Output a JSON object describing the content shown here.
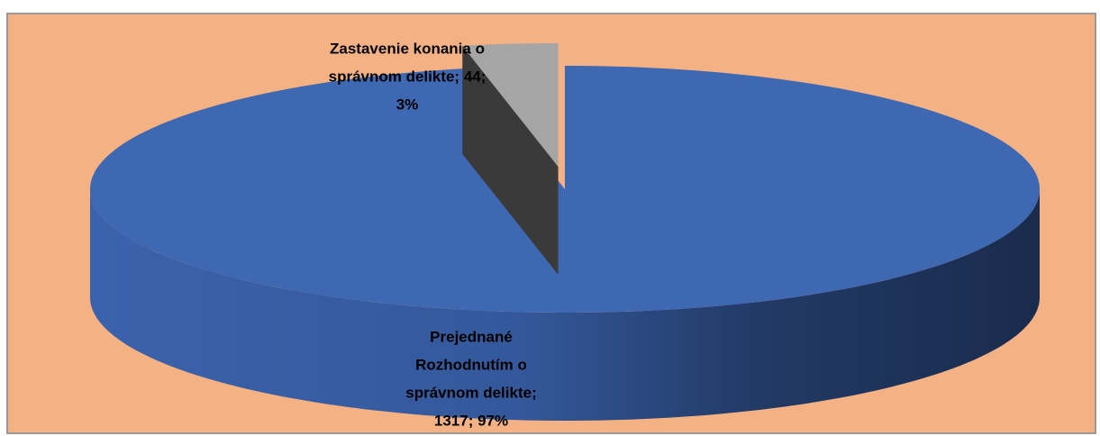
{
  "chart_data": {
    "type": "pie3d",
    "values": [
      1317,
      44
    ],
    "colors": [
      "#3f68b3",
      "#a5a5a5"
    ],
    "data_labels": [
      [
        "Prejednané",
        "Rozhodnutím o",
        "správnom delikte;",
        "1317; 97%"
      ],
      [
        "Zastavenie konania o",
        "správnom delikte; 44;",
        "3%"
      ]
    ]
  }
}
